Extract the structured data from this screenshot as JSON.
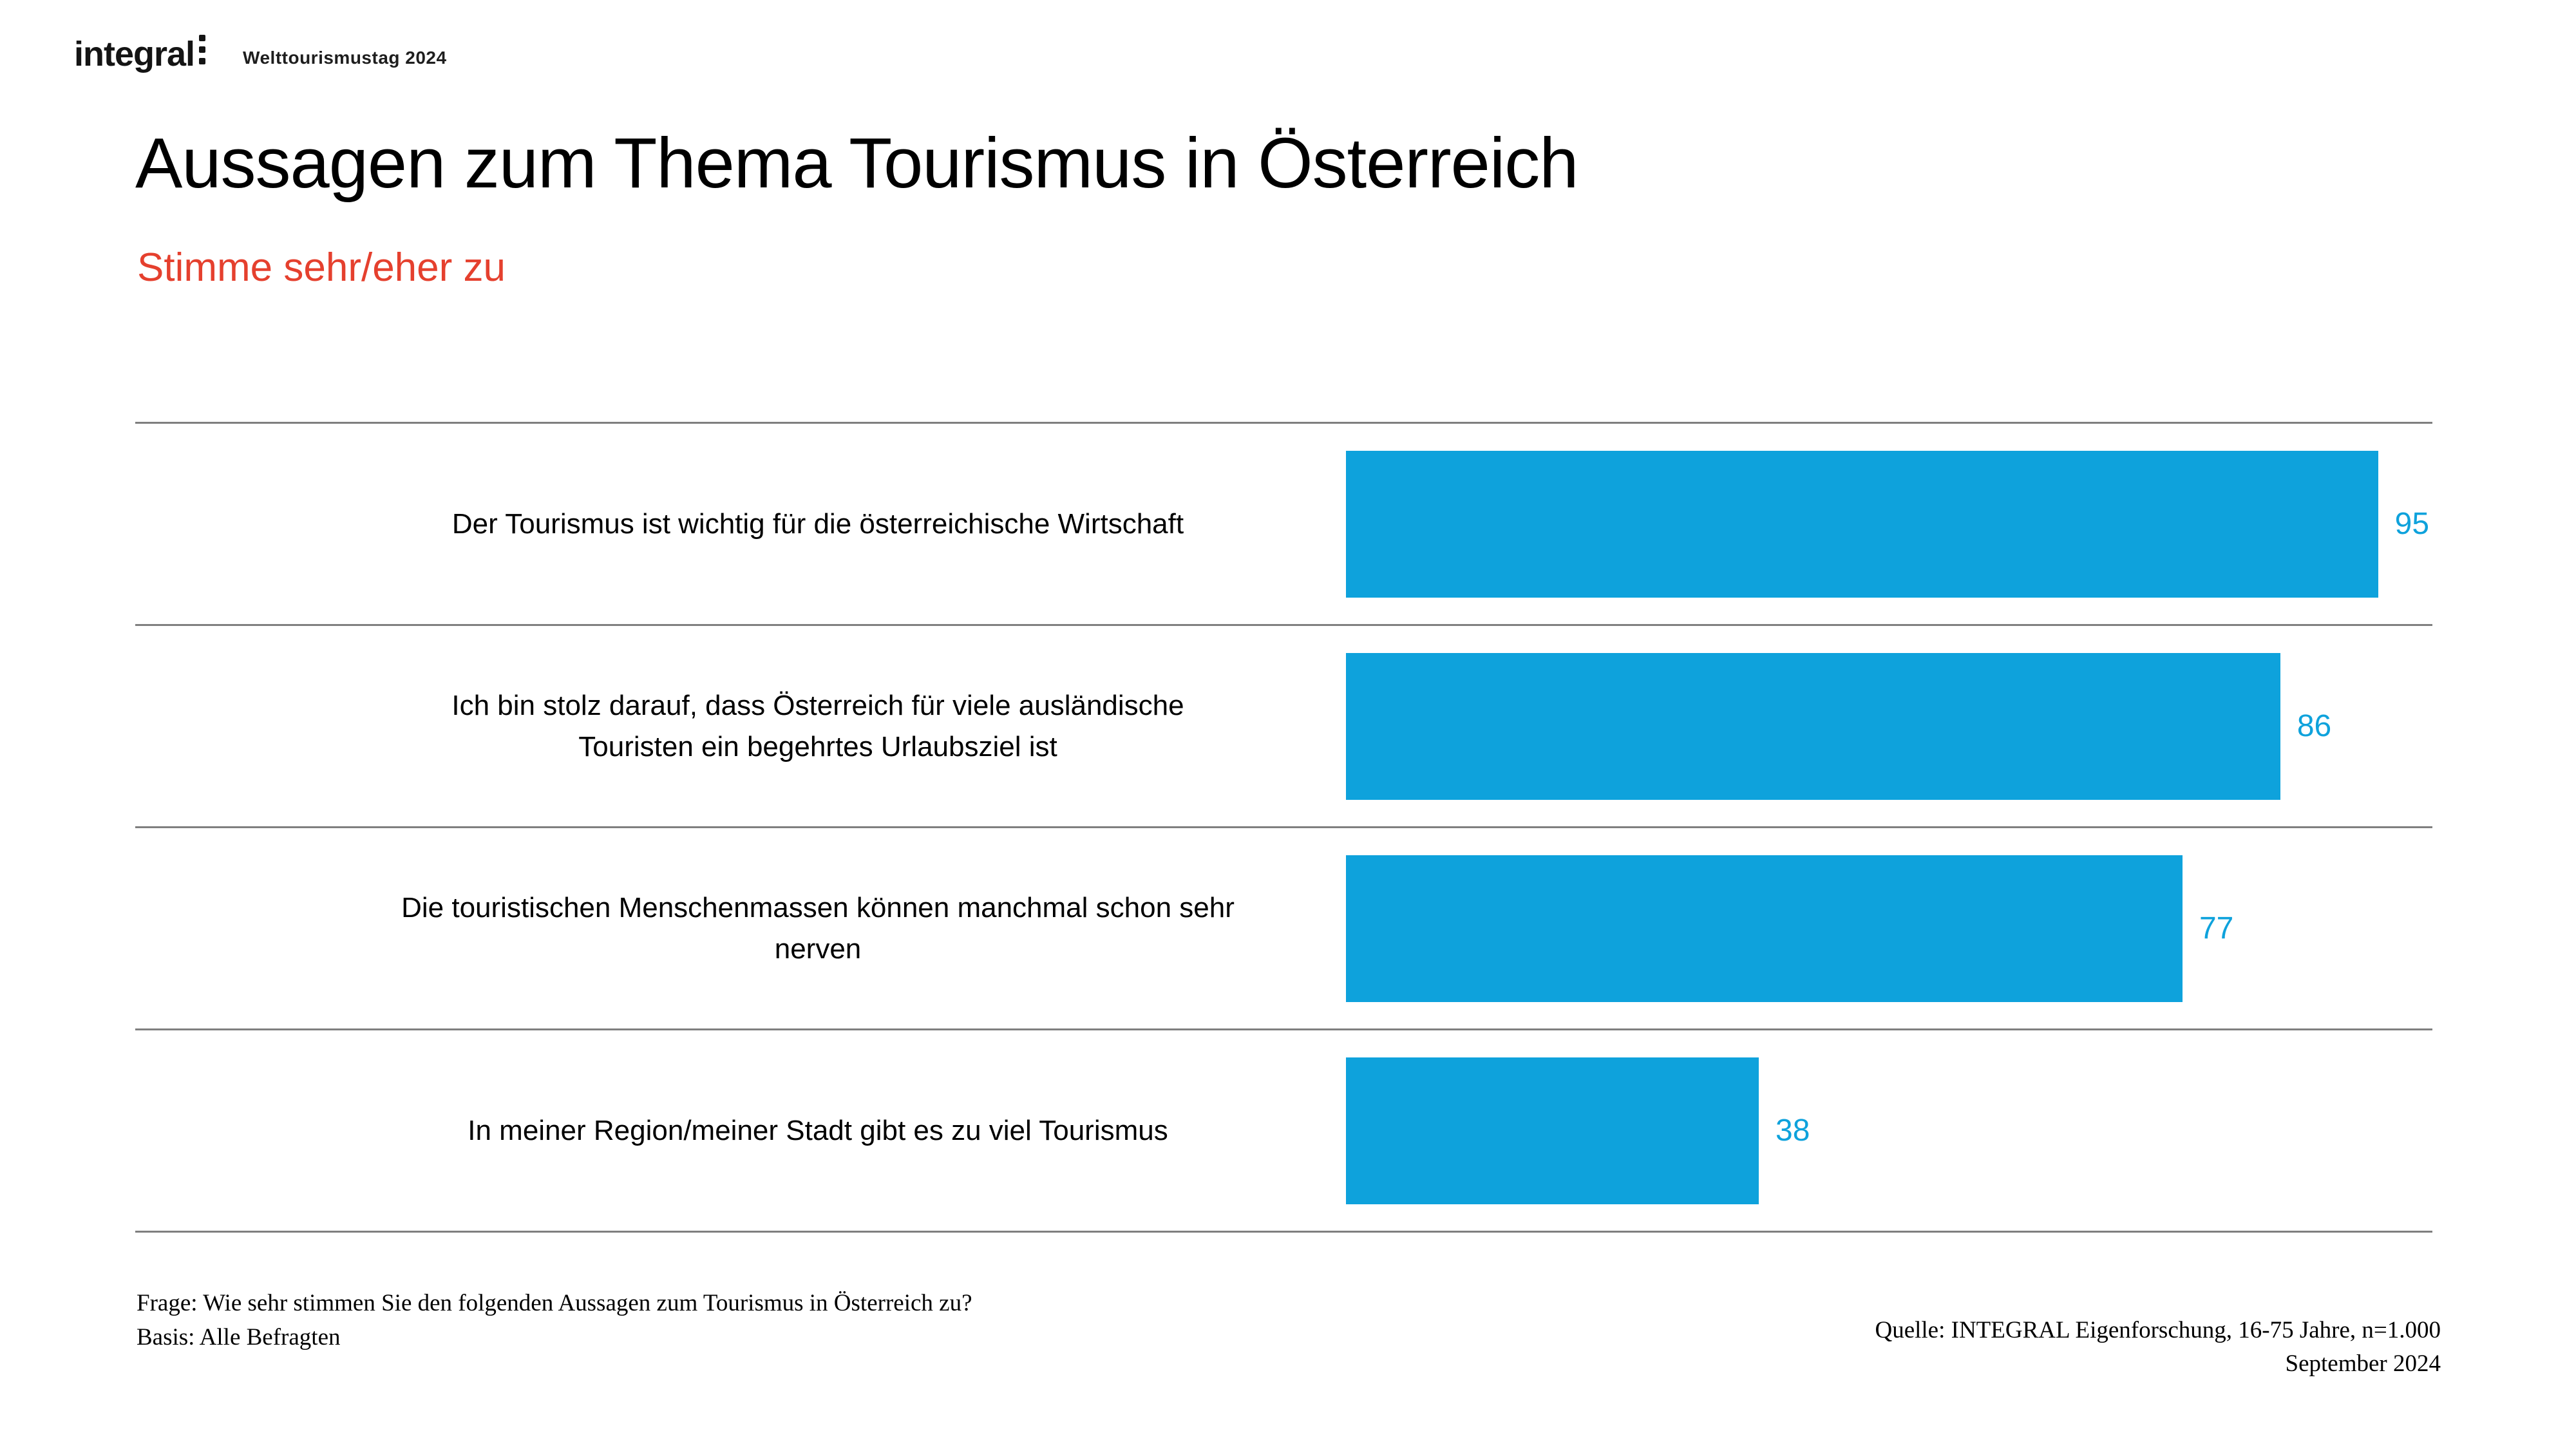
{
  "header": {
    "logo_text": "integral",
    "logo_mark": "vertical-three-dots-icon",
    "project": "Welttourismustag 2024"
  },
  "title": "Aussagen zum Thema Tourismus in Österreich",
  "subtitle": "Stimme sehr/eher zu",
  "colors": {
    "bar": "#0ea2dc",
    "value_label": "#0ea2dc",
    "subtitle": "#e5402e",
    "grid_line": "#7f7f7f"
  },
  "chart_data": {
    "type": "bar",
    "orientation": "horizontal",
    "title": "Aussagen zum Thema Tourismus in Österreich",
    "subtitle": "Stimme sehr/eher zu",
    "categories": [
      "Der Tourismus ist wichtig für die österreichische Wirtschaft",
      "Ich bin stolz darauf, dass Österreich für viele ausländische Touristen ein begehrtes Urlaubsziel ist",
      "Die touristischen Menschenmassen können manchmal schon sehr nerven",
      "In meiner Region/meiner Stadt gibt es zu viel Tourismus"
    ],
    "category_display_lines": [
      [
        "Der Tourismus ist wichtig für die österreichische Wirtschaft"
      ],
      [
        "Ich bin stolz darauf, dass Österreich für viele ausländische",
        "Touristen ein begehrtes Urlaubsziel ist"
      ],
      [
        "Die touristischen Menschenmassen können manchmal schon sehr",
        "nerven"
      ],
      [
        "In meiner Region/meiner Stadt gibt es zu viel Tourismus"
      ]
    ],
    "values": [
      95,
      86,
      77,
      38
    ],
    "xlim": [
      0,
      100
    ],
    "grid": "row-separator-lines",
    "legend": "none",
    "value_labels_position": "right-of-bar"
  },
  "footer": {
    "question": "Frage: Wie sehr stimmen Sie den folgenden Aussagen zum Tourismus in Österreich zu?",
    "basis": "Basis: Alle Befragten",
    "source": "Quelle: INTEGRAL Eigenforschung, 16-75 Jahre, n=1.000",
    "date": "September 2024"
  }
}
